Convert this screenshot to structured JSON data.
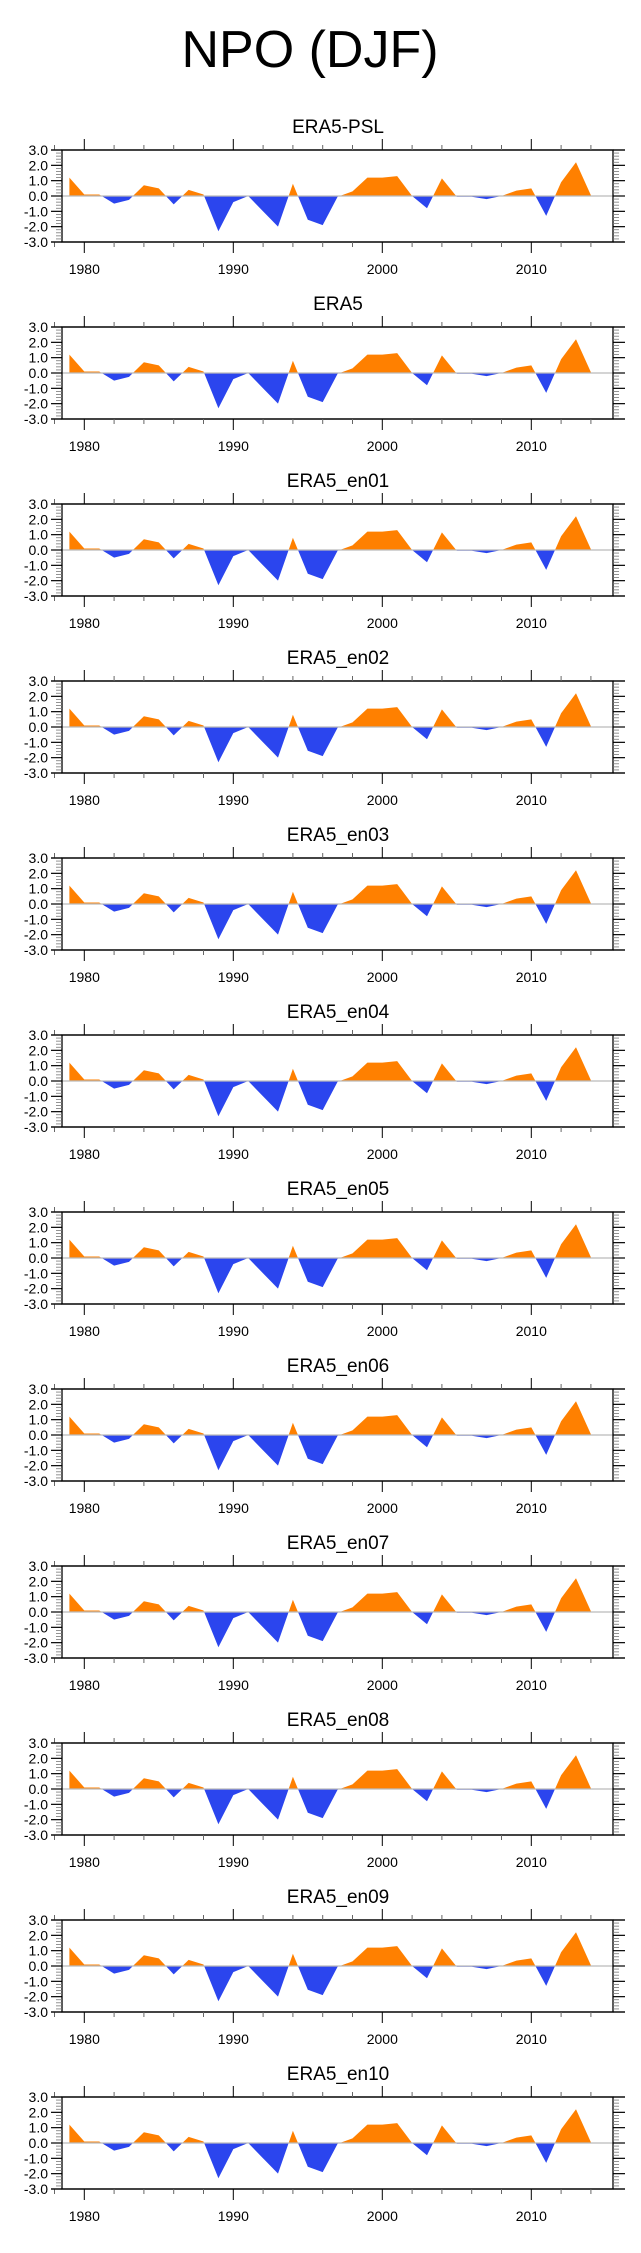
{
  "title": "NPO (DJF)",
  "colors": {
    "positive": "#ff8000",
    "negative": "#2b45ee",
    "zero_line": "#bbbbbb",
    "axis": "#000000"
  },
  "chart_data": {
    "type": "area",
    "layout": "12 stacked panels, one column",
    "x": [
      1979,
      1980,
      1981,
      1982,
      1983,
      1984,
      1985,
      1986,
      1987,
      1988,
      1989,
      1990,
      1991,
      1992,
      1993,
      1994,
      1995,
      1996,
      1997,
      1998,
      1999,
      2000,
      2001,
      2002,
      2003,
      2004,
      2005,
      2006,
      2007,
      2008,
      2009,
      2010,
      2011,
      2012,
      2013,
      2014
    ],
    "xlim": [
      1976.3,
      2015.3
    ],
    "ylim": [
      -3.0,
      3.0
    ],
    "xticks": [
      1980,
      1990,
      2000,
      2010
    ],
    "xtick_labels": [
      "1980",
      "1990",
      "2000",
      "2010"
    ],
    "yticks": [
      3.0,
      2.0,
      1.0,
      0.0,
      -1.0,
      -2.0,
      -3.0
    ],
    "ytick_labels": [
      "3.0",
      "2.0",
      "1.0",
      "0.0",
      "-1.0",
      "-2.0",
      "-3.0"
    ],
    "xlabel": "",
    "ylabel": "",
    "grid": false,
    "fill": "above zero orange, below zero blue",
    "panels": [
      {
        "title": "ERA5-PSL",
        "values": [
          1.2,
          0.1,
          0.1,
          -0.5,
          -0.25,
          0.7,
          0.5,
          -0.55,
          0.4,
          0.1,
          -2.3,
          -0.4,
          0.0,
          -1.0,
          -2.0,
          0.8,
          -1.55,
          -1.9,
          -0.05,
          0.3,
          1.2,
          1.2,
          1.3,
          0.0,
          -0.8,
          1.15,
          -0.05,
          -0.05,
          -0.2,
          0.0,
          0.35,
          0.5,
          -1.3,
          0.9,
          2.2,
          0.05
        ]
      },
      {
        "title": "ERA5",
        "values": [
          1.2,
          0.1,
          0.1,
          -0.5,
          -0.25,
          0.7,
          0.5,
          -0.55,
          0.4,
          0.1,
          -2.3,
          -0.4,
          0.0,
          -1.0,
          -2.0,
          0.8,
          -1.55,
          -1.9,
          -0.05,
          0.3,
          1.2,
          1.2,
          1.3,
          0.0,
          -0.8,
          1.15,
          -0.05,
          -0.05,
          -0.2,
          0.0,
          0.35,
          0.5,
          -1.3,
          0.9,
          2.2,
          0.05
        ]
      },
      {
        "title": "ERA5_en01",
        "values": [
          1.2,
          0.1,
          0.1,
          -0.5,
          -0.25,
          0.7,
          0.5,
          -0.55,
          0.4,
          0.1,
          -2.3,
          -0.4,
          0.0,
          -1.0,
          -2.0,
          0.8,
          -1.55,
          -1.9,
          -0.05,
          0.3,
          1.2,
          1.2,
          1.3,
          0.0,
          -0.8,
          1.15,
          -0.05,
          -0.05,
          -0.2,
          0.0,
          0.35,
          0.5,
          -1.3,
          0.9,
          2.2,
          0.05
        ]
      },
      {
        "title": "ERA5_en02",
        "values": [
          1.2,
          0.1,
          0.1,
          -0.5,
          -0.25,
          0.7,
          0.5,
          -0.55,
          0.4,
          0.1,
          -2.3,
          -0.4,
          0.0,
          -1.0,
          -2.0,
          0.8,
          -1.55,
          -1.9,
          -0.05,
          0.3,
          1.2,
          1.2,
          1.3,
          0.0,
          -0.8,
          1.15,
          -0.05,
          -0.05,
          -0.2,
          0.0,
          0.35,
          0.5,
          -1.3,
          0.9,
          2.2,
          0.05
        ]
      },
      {
        "title": "ERA5_en03",
        "values": [
          1.2,
          0.1,
          0.1,
          -0.5,
          -0.25,
          0.7,
          0.5,
          -0.55,
          0.4,
          0.1,
          -2.3,
          -0.4,
          0.0,
          -1.0,
          -2.0,
          0.8,
          -1.55,
          -1.9,
          -0.05,
          0.3,
          1.2,
          1.2,
          1.3,
          0.0,
          -0.8,
          1.15,
          -0.05,
          -0.05,
          -0.2,
          0.0,
          0.35,
          0.5,
          -1.3,
          0.9,
          2.2,
          0.05
        ]
      },
      {
        "title": "ERA5_en04",
        "values": [
          1.2,
          0.1,
          0.1,
          -0.5,
          -0.25,
          0.7,
          0.5,
          -0.55,
          0.4,
          0.1,
          -2.3,
          -0.4,
          0.0,
          -1.0,
          -2.0,
          0.8,
          -1.55,
          -1.9,
          -0.05,
          0.3,
          1.2,
          1.2,
          1.3,
          0.0,
          -0.8,
          1.15,
          -0.05,
          -0.05,
          -0.2,
          0.0,
          0.35,
          0.5,
          -1.3,
          0.9,
          2.2,
          0.05
        ]
      },
      {
        "title": "ERA5_en05",
        "values": [
          1.2,
          0.1,
          0.1,
          -0.5,
          -0.25,
          0.7,
          0.5,
          -0.55,
          0.4,
          0.1,
          -2.3,
          -0.4,
          0.0,
          -1.0,
          -2.0,
          0.8,
          -1.55,
          -1.9,
          -0.05,
          0.3,
          1.2,
          1.2,
          1.3,
          0.0,
          -0.8,
          1.15,
          -0.05,
          -0.05,
          -0.2,
          0.0,
          0.35,
          0.5,
          -1.3,
          0.9,
          2.2,
          0.05
        ]
      },
      {
        "title": "ERA5_en06",
        "values": [
          1.2,
          0.1,
          0.1,
          -0.5,
          -0.25,
          0.7,
          0.5,
          -0.55,
          0.4,
          0.1,
          -2.3,
          -0.4,
          0.0,
          -1.0,
          -2.0,
          0.8,
          -1.55,
          -1.9,
          -0.05,
          0.3,
          1.2,
          1.2,
          1.3,
          0.0,
          -0.8,
          1.15,
          -0.05,
          -0.05,
          -0.2,
          0.0,
          0.35,
          0.5,
          -1.3,
          0.9,
          2.2,
          0.05
        ]
      },
      {
        "title": "ERA5_en07",
        "values": [
          1.2,
          0.1,
          0.1,
          -0.5,
          -0.25,
          0.7,
          0.5,
          -0.55,
          0.4,
          0.1,
          -2.3,
          -0.4,
          0.0,
          -1.0,
          -2.0,
          0.8,
          -1.55,
          -1.9,
          -0.05,
          0.3,
          1.2,
          1.2,
          1.3,
          0.0,
          -0.8,
          1.15,
          -0.05,
          -0.05,
          -0.2,
          0.0,
          0.35,
          0.5,
          -1.3,
          0.9,
          2.2,
          0.05
        ]
      },
      {
        "title": "ERA5_en08",
        "values": [
          1.2,
          0.1,
          0.1,
          -0.5,
          -0.25,
          0.7,
          0.5,
          -0.55,
          0.4,
          0.1,
          -2.3,
          -0.4,
          0.0,
          -1.0,
          -2.0,
          0.8,
          -1.55,
          -1.9,
          -0.05,
          0.3,
          1.2,
          1.2,
          1.3,
          0.0,
          -0.8,
          1.15,
          -0.05,
          -0.05,
          -0.2,
          0.0,
          0.35,
          0.5,
          -1.3,
          0.9,
          2.2,
          0.05
        ]
      },
      {
        "title": "ERA5_en09",
        "values": [
          1.2,
          0.1,
          0.1,
          -0.5,
          -0.25,
          0.7,
          0.5,
          -0.55,
          0.4,
          0.1,
          -2.3,
          -0.4,
          0.0,
          -1.0,
          -2.0,
          0.8,
          -1.55,
          -1.9,
          -0.05,
          0.3,
          1.2,
          1.2,
          1.3,
          0.0,
          -0.8,
          1.15,
          -0.05,
          -0.05,
          -0.2,
          0.0,
          0.35,
          0.5,
          -1.3,
          0.9,
          2.2,
          0.05
        ]
      },
      {
        "title": "ERA5_en10",
        "values": [
          1.2,
          0.1,
          0.1,
          -0.5,
          -0.25,
          0.7,
          0.5,
          -0.55,
          0.4,
          0.1,
          -2.3,
          -0.4,
          0.0,
          -1.0,
          -2.0,
          0.8,
          -1.55,
          -1.9,
          -0.05,
          0.3,
          1.2,
          1.2,
          1.3,
          0.0,
          -0.8,
          1.15,
          -0.05,
          -0.05,
          -0.2,
          0.0,
          0.35,
          0.5,
          -1.3,
          0.9,
          2.2,
          0.05
        ]
      }
    ]
  }
}
